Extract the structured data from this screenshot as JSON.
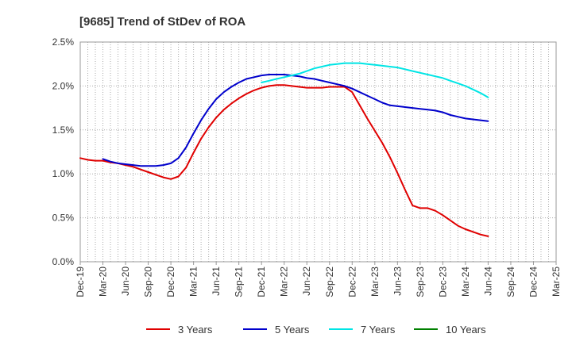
{
  "chart_data": {
    "type": "line",
    "title": "[9685]  Trend of StDev of ROA",
    "xlabel": "",
    "ylabel": "",
    "x_ticks": [
      "Dec-19",
      "Mar-20",
      "Jun-20",
      "Sep-20",
      "Dec-20",
      "Mar-21",
      "Jun-21",
      "Sep-21",
      "Dec-21",
      "Mar-22",
      "Jun-22",
      "Sep-22",
      "Dec-22",
      "Mar-23",
      "Jun-23",
      "Sep-23",
      "Dec-23",
      "Mar-24",
      "Jun-24",
      "Sep-24",
      "Dec-24",
      "Mar-25"
    ],
    "y_ticks": [
      "0.0%",
      "0.5%",
      "1.0%",
      "1.5%",
      "2.0%",
      "2.5%"
    ],
    "ylim": [
      0,
      2.5
    ],
    "grid": true,
    "legend_position": "bottom",
    "series": [
      {
        "name": "3 Years",
        "color": "#e00000",
        "points": [
          [
            0,
            1.18
          ],
          [
            1,
            1.16
          ],
          [
            2,
            1.15
          ],
          [
            3,
            1.15
          ],
          [
            4,
            1.13
          ],
          [
            5,
            1.12
          ],
          [
            6,
            1.1
          ],
          [
            7,
            1.08
          ],
          [
            8,
            1.05
          ],
          [
            9,
            1.02
          ],
          [
            10,
            0.99
          ],
          [
            11,
            0.96
          ],
          [
            12,
            0.94
          ],
          [
            13,
            0.97
          ],
          [
            14,
            1.07
          ],
          [
            15,
            1.24
          ],
          [
            16,
            1.4
          ],
          [
            17,
            1.53
          ],
          [
            18,
            1.64
          ],
          [
            19,
            1.73
          ],
          [
            20,
            1.8
          ],
          [
            21,
            1.86
          ],
          [
            22,
            1.91
          ],
          [
            23,
            1.95
          ],
          [
            24,
            1.98
          ],
          [
            25,
            2.0
          ],
          [
            26,
            2.01
          ],
          [
            27,
            2.01
          ],
          [
            28,
            2.0
          ],
          [
            29,
            1.99
          ],
          [
            30,
            1.98
          ],
          [
            31,
            1.98
          ],
          [
            32,
            1.98
          ],
          [
            33,
            1.99
          ],
          [
            34,
            1.99
          ],
          [
            35,
            1.99
          ],
          [
            36,
            1.93
          ],
          [
            37,
            1.78
          ],
          [
            38,
            1.63
          ],
          [
            39,
            1.49
          ],
          [
            40,
            1.35
          ],
          [
            41,
            1.19
          ],
          [
            42,
            1.01
          ],
          [
            43,
            0.82
          ],
          [
            44,
            0.64
          ],
          [
            45,
            0.61
          ],
          [
            46,
            0.61
          ],
          [
            47,
            0.58
          ],
          [
            48,
            0.53
          ],
          [
            49,
            0.47
          ],
          [
            50,
            0.41
          ],
          [
            51,
            0.37
          ],
          [
            52,
            0.34
          ],
          [
            53,
            0.31
          ],
          [
            54,
            0.29
          ]
        ]
      },
      {
        "name": "5 Years",
        "color": "#0000cc",
        "points": [
          [
            3,
            1.17
          ],
          [
            4,
            1.14
          ],
          [
            5,
            1.12
          ],
          [
            6,
            1.11
          ],
          [
            7,
            1.1
          ],
          [
            8,
            1.09
          ],
          [
            9,
            1.09
          ],
          [
            10,
            1.09
          ],
          [
            11,
            1.1
          ],
          [
            12,
            1.12
          ],
          [
            13,
            1.18
          ],
          [
            14,
            1.3
          ],
          [
            15,
            1.46
          ],
          [
            16,
            1.61
          ],
          [
            17,
            1.74
          ],
          [
            18,
            1.85
          ],
          [
            19,
            1.93
          ],
          [
            20,
            1.99
          ],
          [
            21,
            2.04
          ],
          [
            22,
            2.08
          ],
          [
            23,
            2.1
          ],
          [
            24,
            2.12
          ],
          [
            25,
            2.13
          ],
          [
            26,
            2.13
          ],
          [
            27,
            2.13
          ],
          [
            28,
            2.12
          ],
          [
            29,
            2.11
          ],
          [
            30,
            2.09
          ],
          [
            31,
            2.08
          ],
          [
            32,
            2.06
          ],
          [
            33,
            2.04
          ],
          [
            34,
            2.02
          ],
          [
            35,
            2.0
          ],
          [
            36,
            1.97
          ],
          [
            37,
            1.93
          ],
          [
            38,
            1.89
          ],
          [
            39,
            1.85
          ],
          [
            40,
            1.81
          ],
          [
            41,
            1.78
          ],
          [
            42,
            1.77
          ],
          [
            43,
            1.76
          ],
          [
            44,
            1.75
          ],
          [
            45,
            1.74
          ],
          [
            46,
            1.73
          ],
          [
            47,
            1.72
          ],
          [
            48,
            1.7
          ],
          [
            49,
            1.67
          ],
          [
            50,
            1.65
          ],
          [
            51,
            1.63
          ],
          [
            52,
            1.62
          ],
          [
            53,
            1.61
          ],
          [
            54,
            1.6
          ]
        ]
      },
      {
        "name": "7 Years",
        "color": "#00e5e5",
        "points": [
          [
            24,
            2.04
          ],
          [
            25,
            2.06
          ],
          [
            26,
            2.08
          ],
          [
            27,
            2.1
          ],
          [
            28,
            2.12
          ],
          [
            29,
            2.14
          ],
          [
            30,
            2.17
          ],
          [
            31,
            2.2
          ],
          [
            32,
            2.22
          ],
          [
            33,
            2.24
          ],
          [
            34,
            2.25
          ],
          [
            35,
            2.26
          ],
          [
            36,
            2.26
          ],
          [
            37,
            2.26
          ],
          [
            38,
            2.25
          ],
          [
            39,
            2.24
          ],
          [
            40,
            2.23
          ],
          [
            41,
            2.22
          ],
          [
            42,
            2.21
          ],
          [
            43,
            2.19
          ],
          [
            44,
            2.17
          ],
          [
            45,
            2.15
          ],
          [
            46,
            2.13
          ],
          [
            47,
            2.11
          ],
          [
            48,
            2.09
          ],
          [
            49,
            2.06
          ],
          [
            50,
            2.03
          ],
          [
            51,
            2.0
          ],
          [
            52,
            1.96
          ],
          [
            53,
            1.92
          ],
          [
            54,
            1.87
          ]
        ]
      },
      {
        "name": "10 Years",
        "color": "#008000",
        "points": []
      }
    ]
  }
}
